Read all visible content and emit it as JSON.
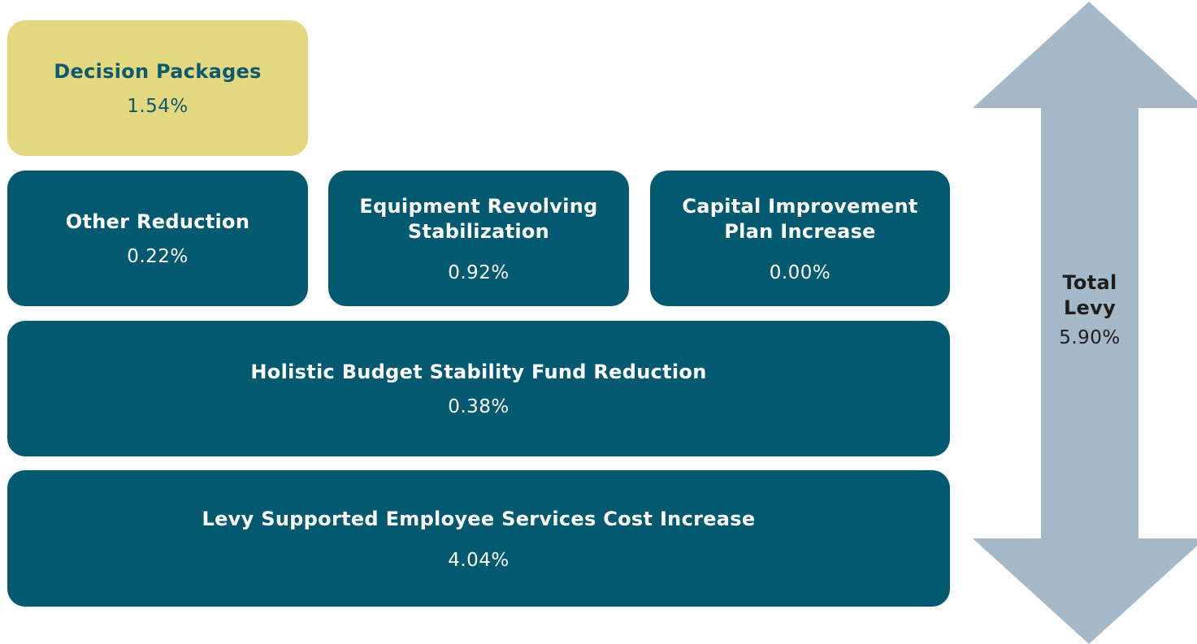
{
  "boxes": [
    {
      "label": "Decision Packages",
      "value": "1.54%"
    },
    {
      "label": "Other Reduction",
      "value": "0.22%"
    },
    {
      "label": "Equipment Revolving Stabilization",
      "value": "0.92%"
    },
    {
      "label": "Capital Improvement Plan Increase",
      "value": "0.00%"
    },
    {
      "label": "Holistic Budget Stability Fund Reduction",
      "value": "0.38%"
    },
    {
      "label": "Levy Supported Employee Services Cost Increase",
      "value": "4.04%"
    }
  ],
  "total": {
    "label": "Total Levy",
    "value": "5.90%"
  }
}
